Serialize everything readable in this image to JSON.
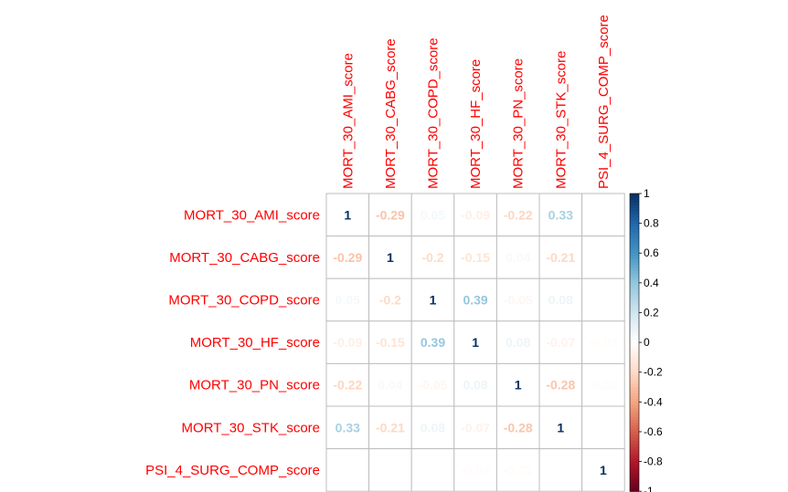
{
  "chart_data": {
    "type": "heatmap",
    "title": "",
    "labels": [
      "MORT_30_AMI_score",
      "MORT_30_CABG_score",
      "MORT_30_COPD_score",
      "MORT_30_HF_score",
      "MORT_30_PN_score",
      "MORT_30_STK_score",
      "PSI_4_SURG_COMP_score"
    ],
    "matrix": [
      [
        1,
        -0.29,
        0.05,
        -0.09,
        -0.22,
        0.33,
        null
      ],
      [
        -0.29,
        1,
        -0.2,
        -0.15,
        0.04,
        -0.21,
        null
      ],
      [
        0.05,
        -0.2,
        1,
        0.39,
        -0.05,
        0.08,
        null
      ],
      [
        -0.09,
        -0.15,
        0.39,
        1,
        0.08,
        -0.07,
        -0.02
      ],
      [
        -0.22,
        0.04,
        -0.05,
        0.08,
        1,
        -0.28,
        -0.02
      ],
      [
        0.33,
        -0.21,
        0.08,
        -0.07,
        -0.28,
        1,
        null
      ],
      [
        null,
        null,
        null,
        -0.02,
        -0.02,
        null,
        1
      ]
    ],
    "colorbar": {
      "ticks": [
        "1",
        "0.8",
        "0.6",
        "0.4",
        "0.2",
        "0",
        "-0.2",
        "-0.4",
        "-0.6",
        "-0.8",
        "-1"
      ],
      "range": [
        -1,
        1
      ]
    },
    "colors": {
      "label": "#ff0000",
      "negative": "#b2182b",
      "positive": "#2166ac",
      "grid": "#bebebe"
    }
  }
}
